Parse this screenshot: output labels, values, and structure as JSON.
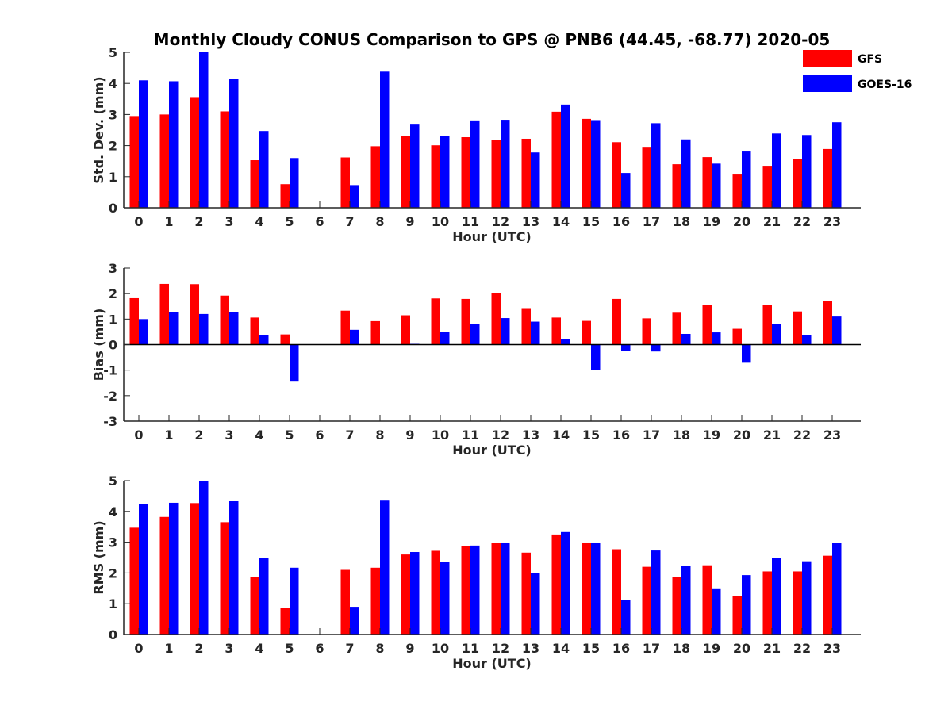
{
  "title": "Monthly Cloudy CONUS Comparison to GPS @ PNB6 (44.45, -68.77) 2020-05",
  "legend": [
    {
      "name": "GFS",
      "color": "#ff0000"
    },
    {
      "name": "GOES-16",
      "color": "#0000ff"
    }
  ],
  "chart_data": [
    {
      "type": "bar",
      "xlabel": "Hour (UTC)",
      "ylabel": "Std. Dev. (mm)",
      "ylim": [
        0,
        5
      ],
      "yticks": [
        0,
        1,
        2,
        3,
        4,
        5
      ],
      "categories": [
        "0",
        "1",
        "2",
        "3",
        "4",
        "5",
        "6",
        "7",
        "8",
        "9",
        "10",
        "11",
        "12",
        "13",
        "14",
        "15",
        "16",
        "17",
        "18",
        "19",
        "20",
        "21",
        "22",
        "23"
      ],
      "series": [
        {
          "name": "GFS",
          "color": "#ff0000",
          "values": [
            2.95,
            3.0,
            3.56,
            3.1,
            1.53,
            0.76,
            0,
            1.62,
            1.98,
            2.31,
            2.01,
            2.27,
            2.19,
            2.22,
            3.09,
            2.86,
            2.11,
            1.96,
            1.4,
            1.63,
            1.07,
            1.35,
            1.58,
            1.89
          ]
        },
        {
          "name": "GOES-16",
          "color": "#0000ff",
          "values": [
            4.1,
            4.07,
            5.0,
            4.15,
            2.47,
            1.6,
            0,
            0.73,
            4.38,
            2.7,
            2.3,
            2.81,
            2.83,
            1.78,
            3.32,
            2.82,
            1.12,
            2.72,
            2.2,
            1.42,
            1.81,
            2.39,
            2.34,
            2.75
          ]
        }
      ],
      "legend": "top-right"
    },
    {
      "type": "bar",
      "xlabel": "Hour (UTC)",
      "ylabel": "Bias (mm)",
      "ylim": [
        -3,
        3
      ],
      "yticks": [
        -3,
        -2,
        -1,
        0,
        1,
        2,
        3
      ],
      "categories": [
        "0",
        "1",
        "2",
        "3",
        "4",
        "5",
        "6",
        "7",
        "8",
        "9",
        "10",
        "11",
        "12",
        "13",
        "14",
        "15",
        "16",
        "17",
        "18",
        "19",
        "20",
        "21",
        "22",
        "23"
      ],
      "series": [
        {
          "name": "GFS",
          "color": "#ff0000",
          "values": [
            1.82,
            2.38,
            2.37,
            1.92,
            1.06,
            0.4,
            0,
            1.33,
            0.92,
            1.15,
            1.81,
            1.79,
            2.03,
            1.43,
            1.06,
            0.93,
            1.79,
            1.03,
            1.25,
            1.57,
            0.62,
            1.55,
            1.3,
            1.72
          ]
        },
        {
          "name": "GOES-16",
          "color": "#0000ff",
          "values": [
            1.0,
            1.28,
            1.2,
            1.26,
            0.37,
            -1.42,
            0,
            0.58,
            0,
            0.03,
            0.51,
            0.8,
            1.04,
            0.9,
            0.23,
            -1.01,
            -0.24,
            -0.27,
            0.42,
            0.48,
            -0.71,
            0.8,
            0.38,
            1.1
          ]
        }
      ]
    },
    {
      "type": "bar",
      "xlabel": "Hour (UTC)",
      "ylabel": "RMS (mm)",
      "ylim": [
        0,
        5
      ],
      "yticks": [
        0,
        1,
        2,
        3,
        4,
        5
      ],
      "categories": [
        "0",
        "1",
        "2",
        "3",
        "4",
        "5",
        "6",
        "7",
        "8",
        "9",
        "10",
        "11",
        "12",
        "13",
        "14",
        "15",
        "16",
        "17",
        "18",
        "19",
        "20",
        "21",
        "22",
        "23"
      ],
      "series": [
        {
          "name": "GFS",
          "color": "#ff0000",
          "values": [
            3.47,
            3.82,
            4.27,
            3.65,
            1.86,
            0.86,
            0,
            2.1,
            2.17,
            2.6,
            2.72,
            2.87,
            2.97,
            2.66,
            3.25,
            2.99,
            2.77,
            2.2,
            1.88,
            2.25,
            1.25,
            2.05,
            2.05,
            2.56
          ]
        },
        {
          "name": "GOES-16",
          "color": "#0000ff",
          "values": [
            4.23,
            4.28,
            5.0,
            4.33,
            2.5,
            2.17,
            0,
            0.9,
            4.35,
            2.68,
            2.35,
            2.89,
            2.99,
            1.99,
            3.33,
            2.99,
            1.13,
            2.73,
            2.24,
            1.5,
            1.93,
            2.5,
            2.38,
            2.97
          ]
        }
      ]
    }
  ]
}
